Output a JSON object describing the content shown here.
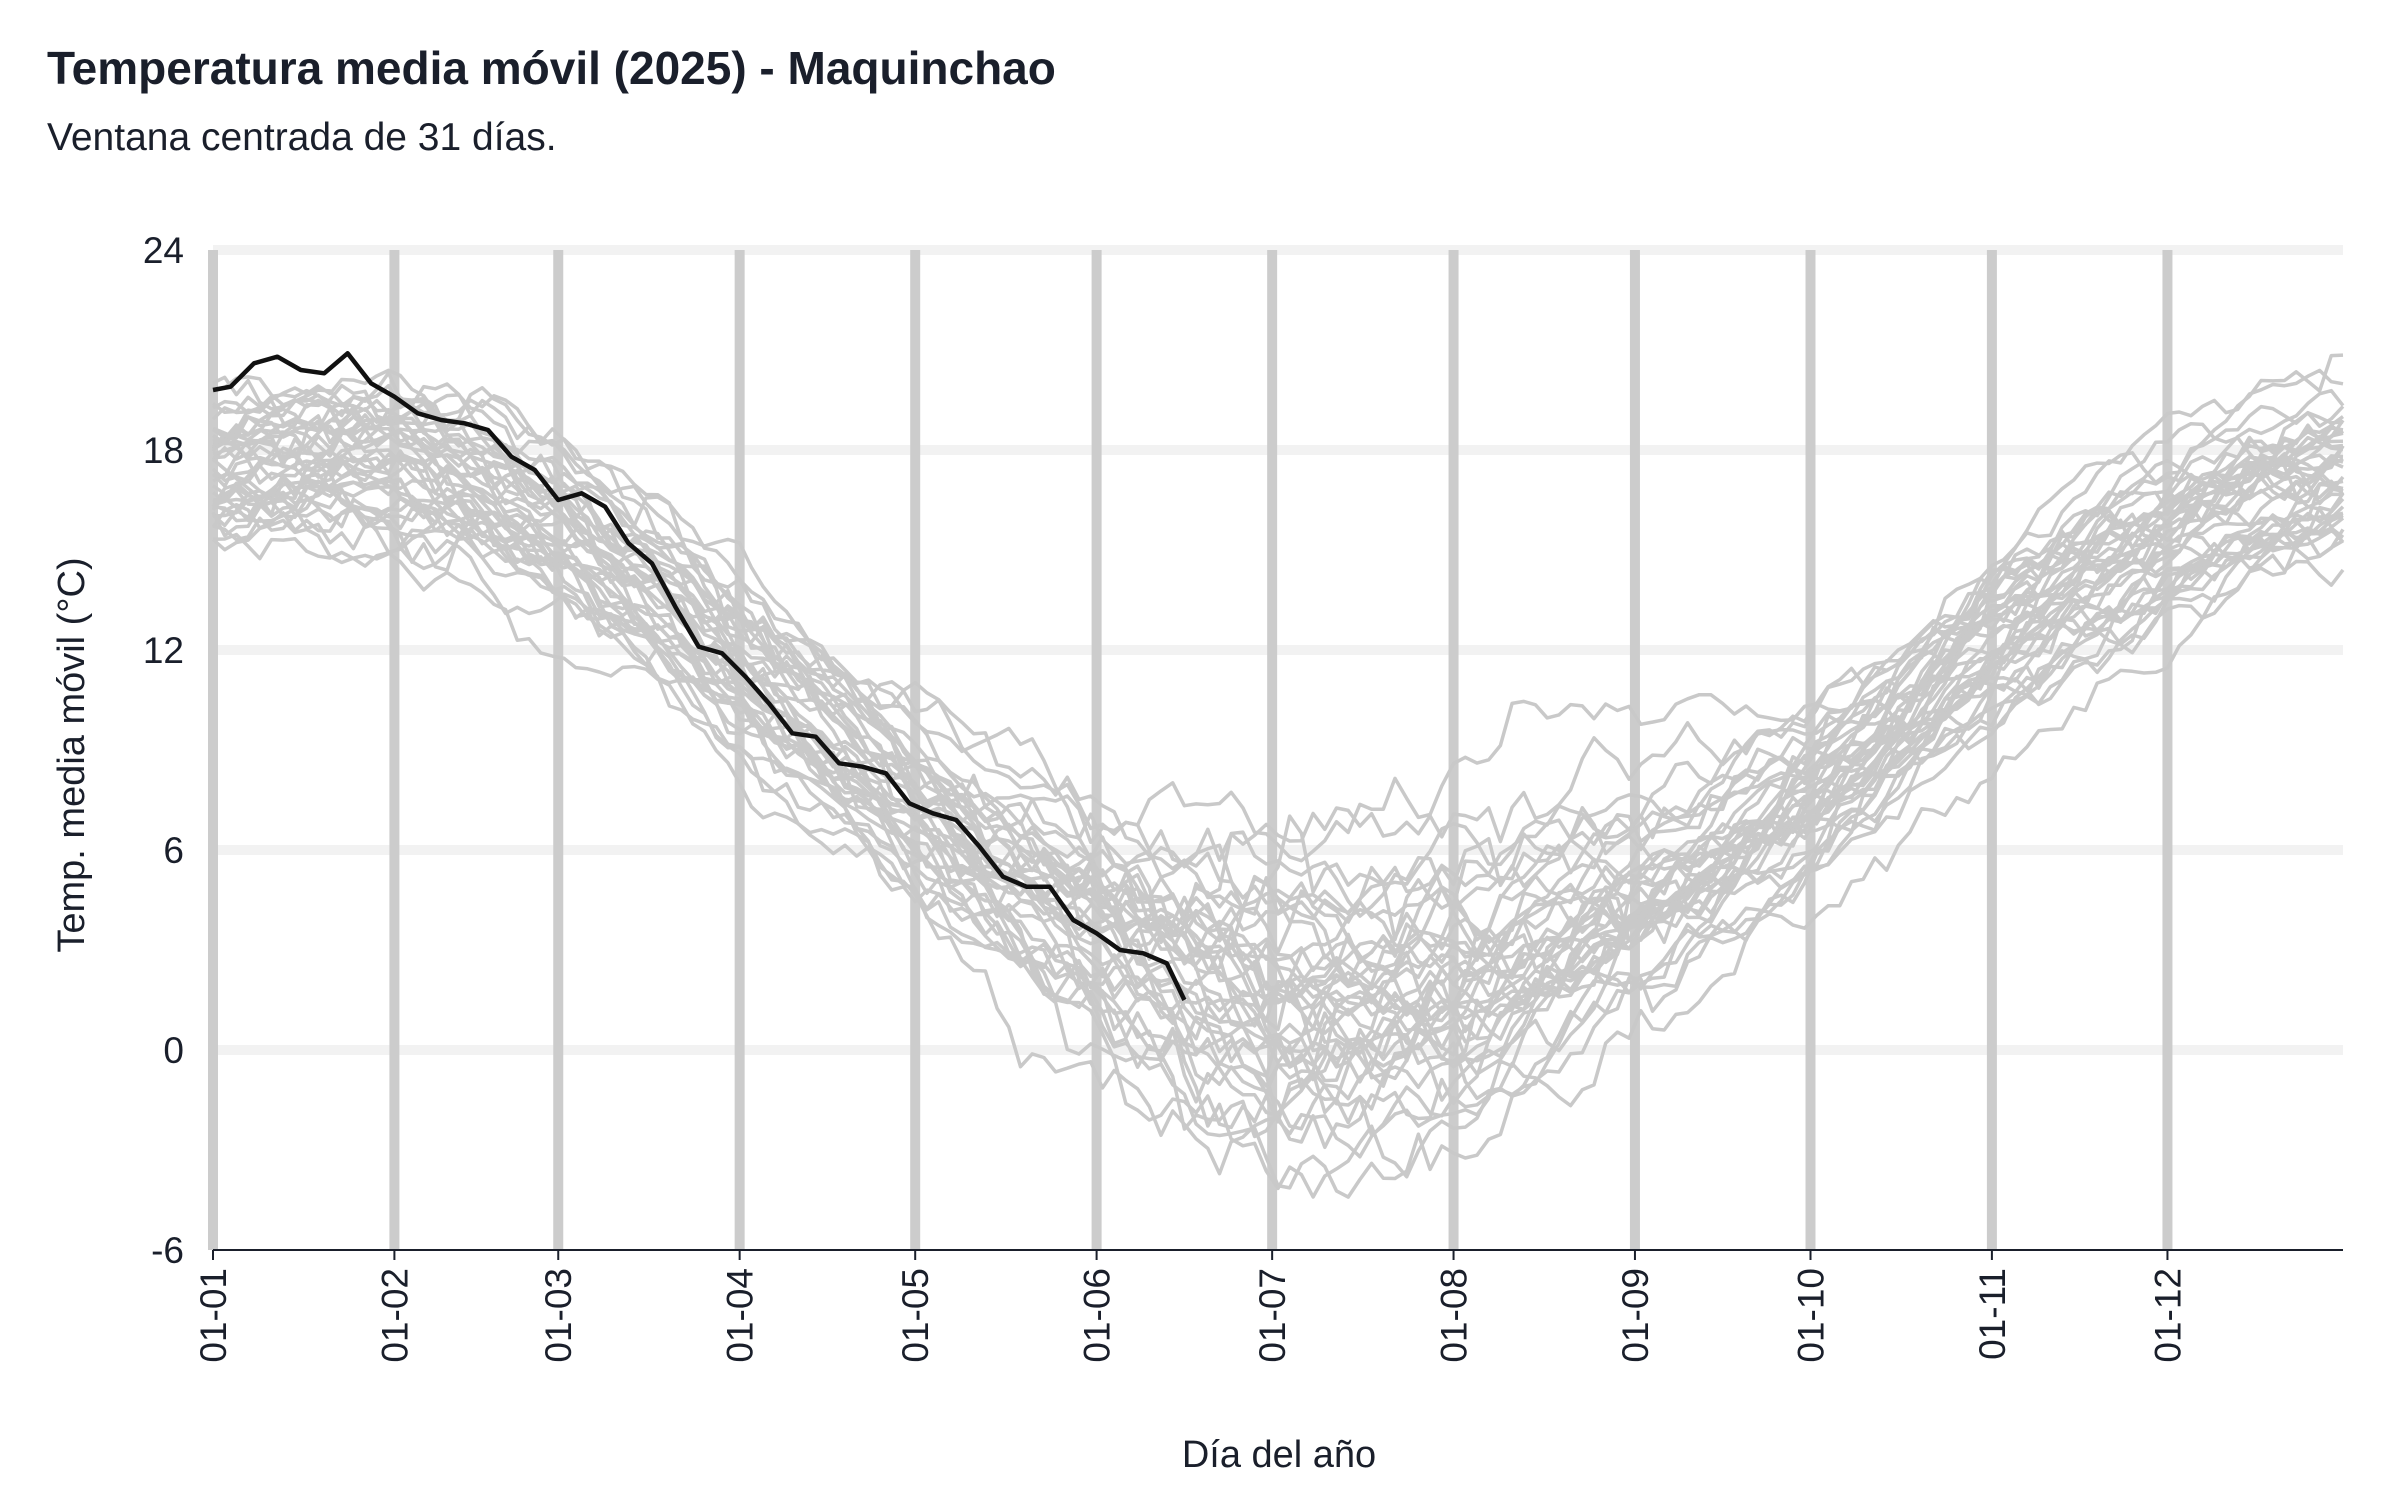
{
  "chart_data": {
    "type": "line",
    "title": "Temperatura media móvil (2025) - Maquinchao",
    "subtitle": "Ventana centrada de 31 días.",
    "xlabel": "Día del año",
    "ylabel": "Temp. media móvil (°C)",
    "xlim": [
      1,
      365
    ],
    "ylim": [
      -6,
      24
    ],
    "y_ticks": [
      -6,
      0,
      6,
      12,
      18,
      24
    ],
    "x_ticks": [
      {
        "day": 1,
        "label": "01-01"
      },
      {
        "day": 32,
        "label": "01-02"
      },
      {
        "day": 60,
        "label": "01-03"
      },
      {
        "day": 91,
        "label": "01-04"
      },
      {
        "day": 121,
        "label": "01-05"
      },
      {
        "day": 152,
        "label": "01-06"
      },
      {
        "day": 182,
        "label": "01-07"
      },
      {
        "day": 213,
        "label": "01-08"
      },
      {
        "day": 244,
        "label": "01-09"
      },
      {
        "day": 274,
        "label": "01-10"
      },
      {
        "day": 305,
        "label": "01-11"
      },
      {
        "day": 335,
        "label": "01-12"
      }
    ],
    "grid": {
      "vertical": true,
      "horizontal": true
    },
    "colors": {
      "highlight": "#111111",
      "history": "#c9c9c9",
      "vertical_grid": "#cccccc",
      "horizontal_grid": "#f2f2f2",
      "axis": "#1a1f2b"
    },
    "historical_envelope": {
      "description_days": [
        1,
        15,
        32,
        46,
        60,
        75,
        91,
        106,
        121,
        136,
        152,
        167,
        182,
        197,
        213,
        228,
        244,
        259,
        274,
        289,
        305,
        320,
        335,
        350,
        365
      ],
      "mean": [
        17.5,
        18.0,
        17.8,
        17.0,
        15.8,
        14.0,
        11.5,
        9.2,
        7.0,
        5.2,
        3.6,
        2.3,
        1.5,
        1.4,
        2.2,
        3.4,
        4.6,
        6.0,
        7.8,
        10.0,
        12.4,
        14.2,
        15.5,
        16.8,
        17.5
      ],
      "count": 40
    },
    "series": [
      {
        "name": "2025",
        "x": [
          1,
          4,
          8,
          12,
          16,
          20,
          24,
          28,
          32,
          36,
          40,
          44,
          48,
          52,
          56,
          60,
          64,
          68,
          72,
          76,
          80,
          84,
          88,
          92,
          96,
          100,
          104,
          108,
          112,
          116,
          120,
          124,
          128,
          132,
          136,
          140,
          144,
          148,
          152,
          156,
          160,
          164,
          167
        ],
        "y": [
          19.8,
          19.9,
          20.6,
          20.8,
          20.4,
          20.3,
          20.9,
          20.0,
          19.6,
          19.1,
          18.9,
          18.8,
          18.6,
          17.8,
          17.4,
          16.5,
          16.7,
          16.3,
          15.2,
          14.6,
          13.3,
          12.1,
          11.9,
          11.2,
          10.4,
          9.5,
          9.4,
          8.6,
          8.5,
          8.3,
          7.4,
          7.1,
          6.9,
          6.1,
          5.2,
          4.9,
          4.9,
          3.9,
          3.5,
          3.0,
          2.9,
          2.6,
          1.5
        ]
      }
    ]
  }
}
